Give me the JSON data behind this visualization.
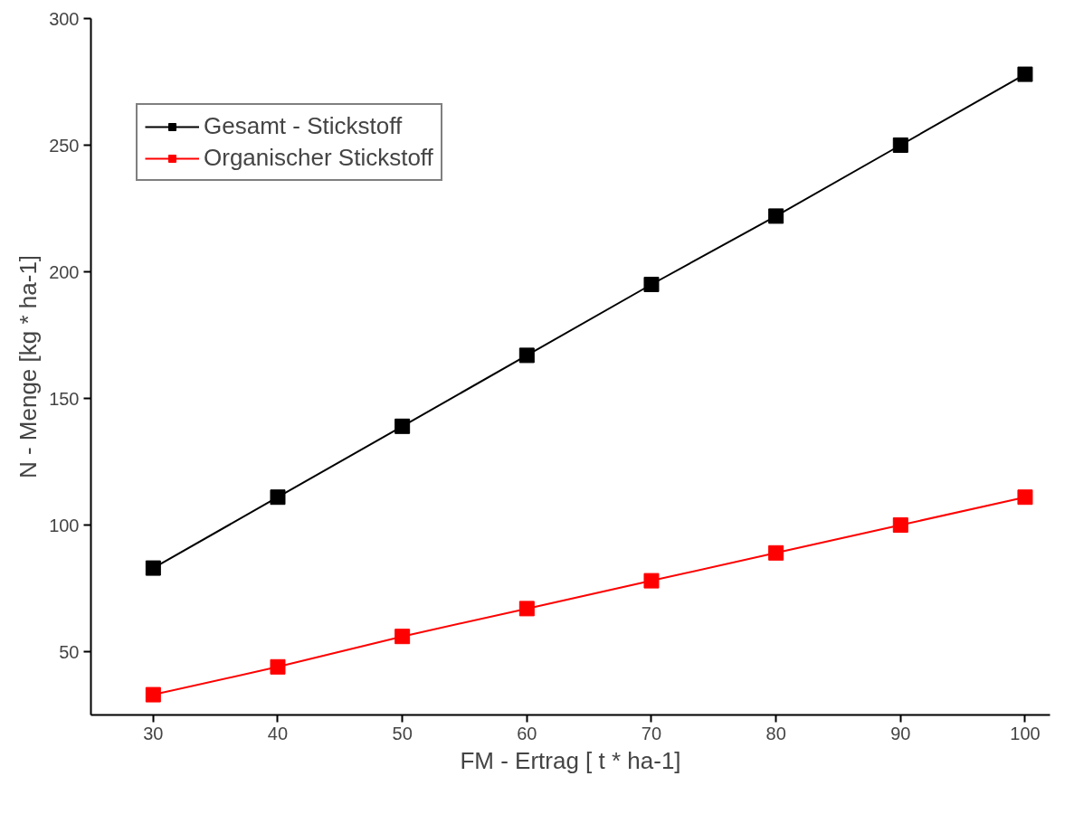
{
  "chart_data": {
    "type": "line",
    "xlabel": "FM - Ertrag [ t * ha-1]",
    "ylabel": "N - Menge [kg * ha-1]",
    "x": [
      30,
      40,
      50,
      60,
      70,
      80,
      90,
      100
    ],
    "series": [
      {
        "name": "Gesamt - Stickstoff",
        "color": "#000000",
        "values": [
          83,
          111,
          139,
          167,
          195,
          222,
          250,
          278
        ]
      },
      {
        "name": "Organischer Stickstoff",
        "color": "#ff0000",
        "values": [
          33,
          44,
          56,
          67,
          78,
          89,
          100,
          111
        ]
      }
    ],
    "xlim": [
      25,
      102
    ],
    "ylim": [
      25,
      300
    ],
    "xticks": [
      30,
      40,
      50,
      60,
      70,
      80,
      90,
      100
    ],
    "yticks": [
      50,
      100,
      150,
      200,
      250,
      300
    ],
    "marker": "square",
    "line_style": "solid",
    "legend": "top left",
    "grid": false
  }
}
